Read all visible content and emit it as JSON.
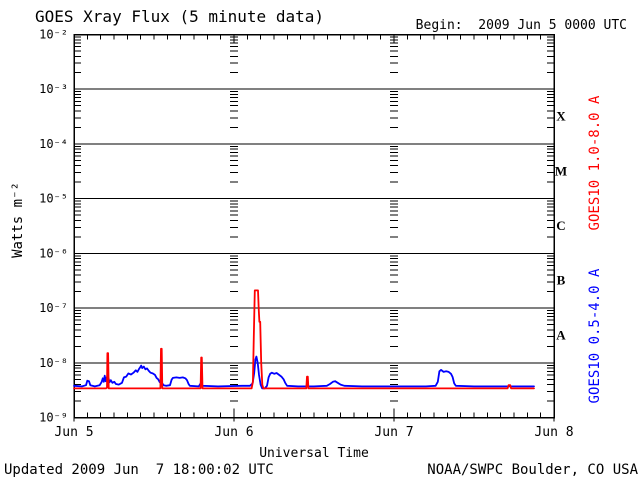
{
  "header": {
    "title": "GOES Xray Flux (5 minute data)",
    "begin": "Begin:  2009 Jun 5 0000 UTC"
  },
  "footer": {
    "updated": "Updated 2009 Jun  7 18:00:02 UTC",
    "credit": "NOAA/SWPC Boulder, CO USA"
  },
  "axes": {
    "y_label": "Watts m⁻²",
    "x_label": "Universal Time",
    "y_tick_labels": [
      "10⁻²",
      "10⁻³",
      "10⁻⁴",
      "10⁻⁵",
      "10⁻⁶",
      "10⁻⁷",
      "10⁻⁸",
      "10⁻⁹"
    ],
    "y_tick_exponents": [
      -2,
      -3,
      -4,
      -5,
      -6,
      -7,
      -8,
      -9
    ],
    "x_tick_labels": [
      "Jun 5",
      "Jun 6",
      "Jun 7",
      "Jun 8"
    ]
  },
  "legend": {
    "long_channel": {
      "label": "GOES10 1.0-8.0 A",
      "color": "#ff0000"
    },
    "short_channel": {
      "label": "GOES10 0.5-4.0 A",
      "color": "#0000ff"
    }
  },
  "chart_data": {
    "type": "line",
    "title": "GOES Xray Flux (5 minute data)",
    "xlabel": "Universal Time",
    "ylabel": "Watts m⁻²",
    "x_units": "days since 2009 Jun 5 0000 UTC",
    "x_tick_labels": [
      "Jun 5",
      "Jun 6",
      "Jun 7",
      "Jun 8"
    ],
    "xlim": [
      0,
      3
    ],
    "yscale": "log",
    "ylim": [
      1e-09,
      0.01
    ],
    "grid": "solid horizontal decade lines; tick-dash vertical lines at interior day boundaries",
    "flare_classes": [
      {
        "label": "X",
        "mid_exp": -3.5
      },
      {
        "label": "M",
        "mid_exp": -4.5
      },
      {
        "label": "C",
        "mid_exp": -5.5
      },
      {
        "label": "B",
        "mid_exp": -6.5
      },
      {
        "label": "A",
        "mid_exp": -7.5
      }
    ],
    "series": [
      {
        "name": "GOES10 0.5-4.0 A",
        "color": "#0000ff",
        "points": [
          [
            0.0,
            3.8e-09
          ],
          [
            0.05,
            3.7e-09
          ],
          [
            0.075,
            3.9e-09
          ],
          [
            0.083,
            4.7e-09
          ],
          [
            0.094,
            4.6e-09
          ],
          [
            0.102,
            3.9e-09
          ],
          [
            0.13,
            3.7e-09
          ],
          [
            0.16,
            3.9e-09
          ],
          [
            0.172,
            4.4e-09
          ],
          [
            0.18,
            5.2e-09
          ],
          [
            0.186,
            4.5e-09
          ],
          [
            0.192,
            5.8e-09
          ],
          [
            0.198,
            4.6e-09
          ],
          [
            0.204,
            5.4e-09
          ],
          [
            0.21,
            4.4e-09
          ],
          [
            0.216,
            5.2e-09
          ],
          [
            0.222,
            4.4e-09
          ],
          [
            0.23,
            4.8e-09
          ],
          [
            0.24,
            4.3e-09
          ],
          [
            0.252,
            4.5e-09
          ],
          [
            0.262,
            4.1e-09
          ],
          [
            0.28,
            4e-09
          ],
          [
            0.3,
            4.3e-09
          ],
          [
            0.312,
            5.4e-09
          ],
          [
            0.326,
            5.6e-09
          ],
          [
            0.34,
            6.4e-09
          ],
          [
            0.356,
            6.1e-09
          ],
          [
            0.372,
            6.6e-09
          ],
          [
            0.386,
            7.3e-09
          ],
          [
            0.396,
            6.8e-09
          ],
          [
            0.406,
            7.7e-09
          ],
          [
            0.414,
            8.3e-09
          ],
          [
            0.42,
            8.9e-09
          ],
          [
            0.426,
            8e-09
          ],
          [
            0.436,
            8.5e-09
          ],
          [
            0.446,
            7.6e-09
          ],
          [
            0.456,
            7.9e-09
          ],
          [
            0.466,
            7.2e-09
          ],
          [
            0.478,
            6.6e-09
          ],
          [
            0.492,
            6.4e-09
          ],
          [
            0.506,
            6e-09
          ],
          [
            0.516,
            5.3e-09
          ],
          [
            0.526,
            5e-09
          ],
          [
            0.536,
            4.4e-09
          ],
          [
            0.544,
            4.9e-09
          ],
          [
            0.552,
            4.2e-09
          ],
          [
            0.56,
            3.9e-09
          ],
          [
            0.575,
            3.8e-09
          ],
          [
            0.6,
            3.9e-09
          ],
          [
            0.61,
            4.9e-09
          ],
          [
            0.618,
            5.3e-09
          ],
          [
            0.64,
            5.4e-09
          ],
          [
            0.66,
            5.3e-09
          ],
          [
            0.68,
            5.4e-09
          ],
          [
            0.696,
            5.2e-09
          ],
          [
            0.706,
            4.8e-09
          ],
          [
            0.716,
            4.1e-09
          ],
          [
            0.724,
            3.8e-09
          ],
          [
            0.78,
            3.7e-09
          ],
          [
            0.794,
            4.3e-09
          ],
          [
            0.804,
            3.8e-09
          ],
          [
            0.9,
            3.7e-09
          ],
          [
            1.05,
            3.8e-09
          ],
          [
            1.1,
            3.8e-09
          ],
          [
            1.116,
            4.2e-09
          ],
          [
            1.126,
            6.5e-09
          ],
          [
            1.134,
            1.15e-08
          ],
          [
            1.14,
            1.3e-08
          ],
          [
            1.148,
            1e-08
          ],
          [
            1.156,
            6e-09
          ],
          [
            1.166,
            4e-09
          ],
          [
            1.176,
            3.4e-09
          ],
          [
            1.192,
            3.4e-09
          ],
          [
            1.206,
            3.8e-09
          ],
          [
            1.216,
            5.4e-09
          ],
          [
            1.226,
            6.3e-09
          ],
          [
            1.236,
            6.6e-09
          ],
          [
            1.252,
            6.3e-09
          ],
          [
            1.266,
            6.5e-09
          ],
          [
            1.282,
            6e-09
          ],
          [
            1.296,
            5.6e-09
          ],
          [
            1.31,
            5e-09
          ],
          [
            1.32,
            4.3e-09
          ],
          [
            1.332,
            3.8e-09
          ],
          [
            1.4,
            3.7e-09
          ],
          [
            1.5,
            3.7e-09
          ],
          [
            1.58,
            3.8e-09
          ],
          [
            1.6,
            4.1e-09
          ],
          [
            1.618,
            4.5e-09
          ],
          [
            1.632,
            4.6e-09
          ],
          [
            1.648,
            4.3e-09
          ],
          [
            1.666,
            4e-09
          ],
          [
            1.69,
            3.8e-09
          ],
          [
            1.8,
            3.7e-09
          ],
          [
            2.0,
            3.7e-09
          ],
          [
            2.2,
            3.7e-09
          ],
          [
            2.26,
            3.8e-09
          ],
          [
            2.274,
            4.5e-09
          ],
          [
            2.284,
            7e-09
          ],
          [
            2.294,
            7.4e-09
          ],
          [
            2.31,
            6.8e-09
          ],
          [
            2.326,
            7e-09
          ],
          [
            2.342,
            6.8e-09
          ],
          [
            2.356,
            6.3e-09
          ],
          [
            2.366,
            5.5e-09
          ],
          [
            2.376,
            4.2e-09
          ],
          [
            2.386,
            3.8e-09
          ],
          [
            2.5,
            3.7e-09
          ],
          [
            2.7,
            3.7e-09
          ],
          [
            2.875,
            3.7e-09
          ]
        ]
      },
      {
        "name": "GOES10 1.0-8.0 A",
        "color": "#ff0000",
        "points": [
          [
            0.0,
            3.4e-09
          ],
          [
            0.2,
            3.4e-09
          ],
          [
            0.206,
            3.5e-09
          ],
          [
            0.209,
            1.5e-08
          ],
          [
            0.213,
            1.5e-08
          ],
          [
            0.217,
            3.4e-09
          ],
          [
            0.4,
            3.4e-09
          ],
          [
            0.54,
            3.4e-09
          ],
          [
            0.544,
            1.8e-08
          ],
          [
            0.548,
            1.8e-08
          ],
          [
            0.552,
            3.4e-09
          ],
          [
            0.7,
            3.4e-09
          ],
          [
            0.791,
            3.4e-09
          ],
          [
            0.795,
            1.25e-08
          ],
          [
            0.799,
            1.25e-08
          ],
          [
            0.803,
            3.4e-09
          ],
          [
            1.0,
            3.4e-09
          ],
          [
            1.11,
            3.4e-09
          ],
          [
            1.118,
            4.5e-09
          ],
          [
            1.124,
            3e-08
          ],
          [
            1.13,
            2.1e-07
          ],
          [
            1.15,
            2.1e-07
          ],
          [
            1.155,
            9e-08
          ],
          [
            1.159,
            5.6e-08
          ],
          [
            1.164,
            5.6e-08
          ],
          [
            1.17,
            1e-08
          ],
          [
            1.177,
            4e-09
          ],
          [
            1.184,
            3.4e-09
          ],
          [
            1.4,
            3.4e-09
          ],
          [
            1.452,
            3.4e-09
          ],
          [
            1.456,
            5.6e-09
          ],
          [
            1.461,
            5.6e-09
          ],
          [
            1.465,
            3.4e-09
          ],
          [
            2.0,
            3.4e-09
          ],
          [
            2.71,
            3.4e-09
          ],
          [
            2.716,
            3.9e-09
          ],
          [
            2.726,
            3.9e-09
          ],
          [
            2.732,
            3.4e-09
          ],
          [
            2.875,
            3.4e-09
          ]
        ]
      }
    ]
  }
}
